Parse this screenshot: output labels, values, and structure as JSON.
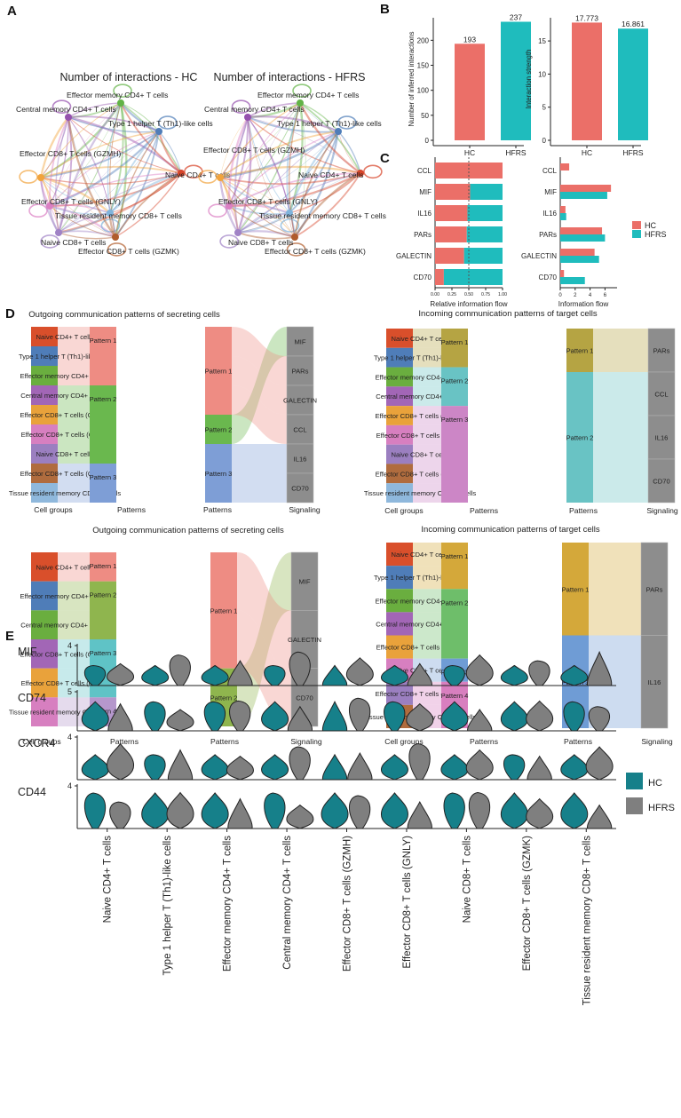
{
  "colors": {
    "hc": "#EB6F68",
    "hfrs": "#1FBCBD",
    "violin_hc": "#16808A",
    "violin_hfrs": "#7F7F7F",
    "signal_gray": "#8D8D8D",
    "hc_label": "#E8604C",
    "hfrs_label": "#1FB3B8",
    "cells": [
      "#D94F2B",
      "#4F7DB8",
      "#6AAE3F",
      "#A266B6",
      "#E9A23B",
      "#D77FC0",
      "#9B7FC0",
      "#B06C3E",
      "#8FB8DC"
    ]
  },
  "panels": {
    "A": "A",
    "B": "B",
    "C": "C",
    "D": "D",
    "E": "E"
  },
  "panel_a": {
    "hc_title": "Number of interactions - HC",
    "hfrs_title": "Number of interactions - HFRS",
    "hc_nodes": [
      {
        "label": "Effector memory CD4+ T cells",
        "color": "#62B346"
      },
      {
        "label": "Central memory CD4+ T cells",
        "color": "#9551AE"
      },
      {
        "label": "Type 1 helper T (Th1)-like cells",
        "color": "#4F7DB8"
      },
      {
        "label": "Effector CD8+ T cells (GZMH)",
        "color": "#F1A33C"
      },
      {
        "label": "Naive CD4+ T cells",
        "color": "#D7452A"
      },
      {
        "label": "Effector CD8+ T cells (GNLY)",
        "color": "#DB7FC3"
      },
      {
        "label": "Tissue resident memory CD8+ T cells",
        "color": "#7FB3DC"
      },
      {
        "label": "Naive CD8+ T cells",
        "color": "#A082C6"
      },
      {
        "label": "Effector CD8+ T cells (GZMK)",
        "color": "#B05C2C"
      }
    ],
    "hfrs_nodes": [
      {
        "label": "Effector memory CD4+ T cells",
        "color": "#62B346"
      },
      {
        "label": "Central memory CD4+ T cells",
        "color": "#9551AE"
      },
      {
        "label": "Type 1 helper T (Th1)-like cells",
        "color": "#4F7DB8"
      },
      {
        "label": "Effector CD8+ T cells (GZMH)",
        "color": "#F1A33C"
      },
      {
        "label": "Naive CD4+ T cells",
        "color": "#D7452A"
      },
      {
        "label": "Effector CD8+ T cells (GNLY)",
        "color": "#DB7FC3"
      },
      {
        "label": "Tissue resident memory CD8+ T cells",
        "color": "#7FB3DC"
      },
      {
        "label": "Naive CD8+ T cells",
        "color": "#A082C6"
      },
      {
        "label": "Effector CD8+ T cells (GZMK)",
        "color": "#B05C2C"
      }
    ]
  },
  "chart_data": [
    {
      "id": "B1",
      "type": "bar",
      "categories": [
        "HC",
        "HFRS"
      ],
      "values": [
        193,
        237
      ],
      "labels": [
        "193",
        "237"
      ],
      "ylabel": "Number of inferred interactions",
      "ylim": [
        0,
        245
      ],
      "ticks": [
        0,
        50,
        100,
        150,
        200
      ]
    },
    {
      "id": "B2",
      "type": "bar",
      "categories": [
        "HC",
        "HFRS"
      ],
      "values": [
        17.773,
        16.861
      ],
      "labels": [
        "17.773",
        "16.861"
      ],
      "ylabel": "Interaction strength",
      "ylim": [
        0,
        18.5
      ],
      "ticks": [
        0,
        5,
        10,
        15
      ]
    },
    {
      "id": "C1",
      "type": "bar",
      "orientation": "horizontal",
      "stacked": true,
      "xlabel": "Relative information flow",
      "categories": [
        "CCL",
        "MIF",
        "IL16",
        "PARs",
        "GALECTIN",
        "CD70"
      ],
      "series": [
        {
          "name": "HC",
          "values": [
            1.0,
            0.52,
            0.48,
            0.47,
            0.43,
            0.13
          ]
        },
        {
          "name": "HFRS",
          "values": [
            0.0,
            0.48,
            0.52,
            0.53,
            0.57,
            0.87
          ]
        }
      ],
      "ticks": [
        "0.00",
        "0.25",
        "0.50",
        "0.75",
        "1.00"
      ]
    },
    {
      "id": "C2",
      "type": "bar",
      "orientation": "horizontal",
      "xlabel": "Information flow",
      "categories": [
        "CCL",
        "MIF",
        "IL16",
        "PARs",
        "GALECTIN",
        "CD70"
      ],
      "series": [
        {
          "name": "HC",
          "values": [
            1.2,
            6.8,
            0.7,
            5.6,
            4.6,
            0.5
          ]
        },
        {
          "name": "HFRS",
          "values": [
            0,
            6.3,
            0.8,
            6.0,
            5.2,
            3.3
          ]
        }
      ],
      "ticks": [
        "0",
        "2",
        "4",
        "6"
      ],
      "legend": [
        "HC",
        "HFRS"
      ]
    },
    {
      "id": "D",
      "type": "alluvial",
      "panels": [
        {
          "title": "Outgoing communication patterns of secreting cells",
          "cells": [
            "Naive CD4+ T cells",
            "Type 1 helper T (Th1)-like cells",
            "Effector memory CD4+ T cells",
            "Central memory CD4+ T cells",
            "Effector CD8+ T cells (GZMH)",
            "Effector CD8+ T cells (GNLY)",
            "Naive CD8+ T cells",
            "Effector CD8+ T cells (GZMK)",
            "Tissue resident memory CD8+ T cells"
          ],
          "patterns": [
            "Pattern 1",
            "Pattern 2",
            "Pattern 3"
          ],
          "signals": [
            "MIF",
            "PARs",
            "GALECTIN",
            "CCL",
            "IL16",
            "CD70"
          ],
          "cell_pattern": [
            0,
            0,
            0,
            1,
            1,
            1,
            1,
            2,
            2
          ],
          "signal_pattern": [
            1,
            0,
            0,
            0,
            2,
            2
          ]
        },
        {
          "title": "Incoming communication patterns of target cells",
          "cells": [
            "Naive CD4+ T cells",
            "Type 1 helper T (Th1)-like cells",
            "Effector memory CD4+ T cells",
            "Central memory CD4+ T cells",
            "Effector CD8+ T cells (GZMH)",
            "Effector CD8+ T cells (GNLY)",
            "Naive CD8+ T cells",
            "Effector CD8+ T cells (GZMK)",
            "Tissue resident memory CD8+ T cells"
          ],
          "patterns": [
            "Pattern 1",
            "Pattern 2",
            "Pattern 3"
          ],
          "signals": [
            "PARs",
            "CCL",
            "IL16",
            "CD70"
          ],
          "cell_pattern": [
            0,
            0,
            1,
            1,
            2,
            2,
            2,
            2,
            2
          ],
          "signal_pattern": [
            0,
            1,
            1,
            1
          ]
        },
        {
          "title": "Outgoing communication patterns of secreting cells",
          "cells": [
            "Naive CD4+ T cells",
            "Effector memory CD4+ T cells",
            "Central memory CD4+ T cells",
            "Effector CD8+ T cells (GZMH)",
            "Effector CD8+ T cells (GNLY)",
            "Tissue resident memory CD8+ T cells"
          ],
          "patterns": [
            "Pattern 1",
            "Pattern 2",
            "Pattern 3",
            "Pattern 4"
          ],
          "signals": [
            "MIF",
            "GALECTIN",
            "CD70"
          ],
          "cell_pattern": [
            0,
            1,
            1,
            2,
            2,
            3
          ],
          "signal_pattern": [
            1,
            0,
            0
          ]
        },
        {
          "title": "Incoming communication patterns of target cells",
          "cells": [
            "Naive CD4+ T cells",
            "Type 1 helper T (Th1)-like cells",
            "Effector memory CD4+ T cells",
            "Central memory CD4+ T cells",
            "Effector CD8+ T cells (GNLY)",
            "Naive CD8+ T cells",
            "Effector CD8+ T cells (GZMK)",
            "Tissue resident memory CD8+ T cells"
          ],
          "patterns": [
            "Pattern 1",
            "Pattern 2",
            "Pattern 3",
            "Pattern 4"
          ],
          "signals": [
            "PARs",
            "IL16"
          ],
          "cell_pattern": [
            0,
            0,
            1,
            1,
            1,
            2,
            3,
            3
          ],
          "signal_pattern": [
            0,
            2
          ]
        }
      ],
      "axis_labels": {
        "cells": "Cell groups",
        "patterns": "Patterns",
        "signals": "Signaling"
      }
    },
    {
      "id": "E",
      "type": "violin",
      "genes": [
        {
          "name": "MIF",
          "max": "4"
        },
        {
          "name": "CD74",
          "max": "5"
        },
        {
          "name": "CXCR4",
          "max": "4"
        },
        {
          "name": "CD44",
          "max": "4"
        }
      ],
      "groups": [
        "Naive CD4+ T cells",
        "Type 1 helper T (Th1)-like cells",
        "Effector memory CD4+ T cells",
        "Central memory CD4+ T cells",
        "Effector CD8+ T cells (GZMH)",
        "Effector CD8+ T cells (GNLY)",
        "Naive CD8+ T cells",
        "Effector CD8+ T cells (GZMK)",
        "Tissue resident memory CD8+ T cells"
      ],
      "legend": [
        "HC",
        "HFRS"
      ]
    }
  ]
}
